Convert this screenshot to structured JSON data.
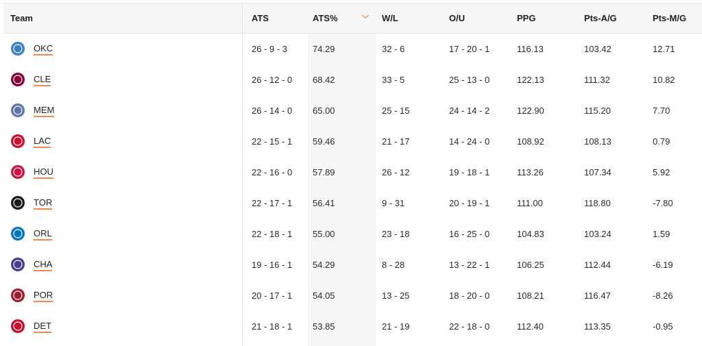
{
  "columns": [
    "Team",
    "ATS",
    "ATS%",
    "W/L",
    "O/U",
    "PPG",
    "Pts-A/G",
    "Pts-M/G"
  ],
  "sort": {
    "column": "ATS%",
    "direction": "descending",
    "icon": "chevron-down-icon",
    "color": "#f28a50"
  },
  "accent": "#f28a50",
  "rows": [
    {
      "team": "OKC",
      "logo": "thunder-logo",
      "color": "#3a7fc4",
      "ats": "26 - 9 - 3",
      "ats_pct": "74.29",
      "wl": "32 - 6",
      "ou": "17 - 20 - 1",
      "ppg": "116.13",
      "pts_a": "103.42",
      "pts_m": "12.71"
    },
    {
      "team": "CLE",
      "logo": "cavaliers-logo",
      "color": "#860038",
      "ats": "26 - 12 - 0",
      "ats_pct": "68.42",
      "wl": "33 - 5",
      "ou": "25 - 13 - 0",
      "ppg": "122.13",
      "pts_a": "111.32",
      "pts_m": "10.82"
    },
    {
      "team": "MEM",
      "logo": "grizzlies-logo",
      "color": "#5d76a9",
      "ats": "26 - 14 - 0",
      "ats_pct": "65.00",
      "wl": "25 - 15",
      "ou": "24 - 14 - 2",
      "ppg": "122.90",
      "pts_a": "115.20",
      "pts_m": "7.70"
    },
    {
      "team": "LAC",
      "logo": "clippers-logo",
      "color": "#c8102e",
      "ats": "22 - 15 - 1",
      "ats_pct": "59.46",
      "wl": "21 - 17",
      "ou": "14 - 24 - 0",
      "ppg": "108.92",
      "pts_a": "108.13",
      "pts_m": "0.79"
    },
    {
      "team": "HOU",
      "logo": "rockets-logo",
      "color": "#ce1141",
      "ats": "22 - 16 - 0",
      "ats_pct": "57.89",
      "wl": "26 - 12",
      "ou": "19 - 18 - 1",
      "ppg": "113.26",
      "pts_a": "107.34",
      "pts_m": "5.92"
    },
    {
      "team": "TOR",
      "logo": "raptors-logo",
      "color": "#1a1a1a",
      "ats": "22 - 17 - 1",
      "ats_pct": "56.41",
      "wl": "9 - 31",
      "ou": "20 - 19 - 1",
      "ppg": "111.00",
      "pts_a": "118.80",
      "pts_m": "-7.80"
    },
    {
      "team": "ORL",
      "logo": "magic-logo",
      "color": "#0077c0",
      "ats": "22 - 18 - 1",
      "ats_pct": "55.00",
      "wl": "23 - 18",
      "ou": "16 - 25 - 0",
      "ppg": "104.83",
      "pts_a": "103.24",
      "pts_m": "1.59"
    },
    {
      "team": "CHA",
      "logo": "hornets-logo",
      "color": "#4b3b8f",
      "ats": "19 - 16 - 1",
      "ats_pct": "54.29",
      "wl": "8 - 28",
      "ou": "13 - 22 - 1",
      "ppg": "106.25",
      "pts_a": "112.44",
      "pts_m": "-6.19"
    },
    {
      "team": "POR",
      "logo": "trail-blazers-logo",
      "color": "#a01d2a",
      "ats": "20 - 17 - 1",
      "ats_pct": "54.05",
      "wl": "13 - 25",
      "ou": "18 - 20 - 0",
      "ppg": "108.21",
      "pts_a": "116.47",
      "pts_m": "-8.26"
    },
    {
      "team": "DET",
      "logo": "pistons-logo",
      "color": "#c8102e",
      "ats": "21 - 18 - 1",
      "ats_pct": "53.85",
      "wl": "21 - 19",
      "ou": "22 - 18 - 0",
      "ppg": "112.40",
      "pts_a": "113.35",
      "pts_m": "-0.95"
    }
  ]
}
